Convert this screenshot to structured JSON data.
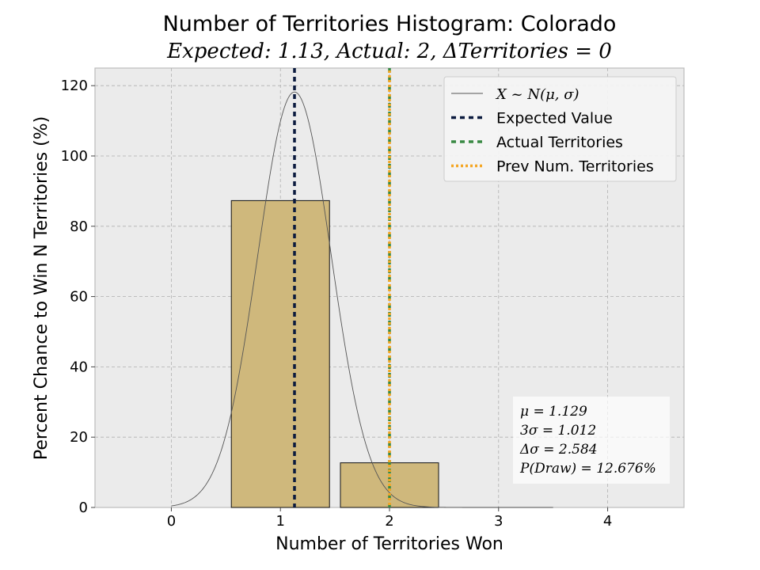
{
  "chart_data": {
    "type": "bar",
    "title": "Number of Territories Histogram: Colorado",
    "subtitle": "Expected: 1.13, Actual: 2, ΔTerritories = 0",
    "xlabel": "Number of Territories Won",
    "ylabel": "Percent Chance to Win N Territories (%)",
    "xlim": [
      -0.7,
      4.7
    ],
    "ylim": [
      0,
      125
    ],
    "xticks": [
      0,
      1,
      2,
      3,
      4
    ],
    "yticks": [
      0,
      20,
      40,
      60,
      80,
      100,
      120
    ],
    "grid": true,
    "categories": [
      0,
      1,
      2,
      3,
      4
    ],
    "values": [
      0,
      87.3,
      12.7,
      0,
      0
    ],
    "bar_color": "#cfb87c",
    "normal_curve": {
      "label": "X ~ N(μ, σ)",
      "mu": 1.129,
      "sigma": 0.337,
      "peak": 118.2,
      "x_range": [
        0,
        3.5
      ],
      "color": "#555555"
    },
    "vlines": [
      {
        "label": "Expected Value",
        "x": 1.129,
        "color": "#0b1a3e",
        "style": "dashed"
      },
      {
        "label": "Actual Territories",
        "x": 2,
        "color": "#3a8a44",
        "style": "dashed"
      },
      {
        "label": "Prev Num. Territories",
        "x": 2,
        "color": "#f5a623",
        "style": "dotted"
      }
    ],
    "legend_position": "top-right",
    "stats": [
      "μ = 1.129",
      "3σ = 1.012",
      "Δσ = 2.584",
      "P(Draw) = 12.676%"
    ]
  }
}
